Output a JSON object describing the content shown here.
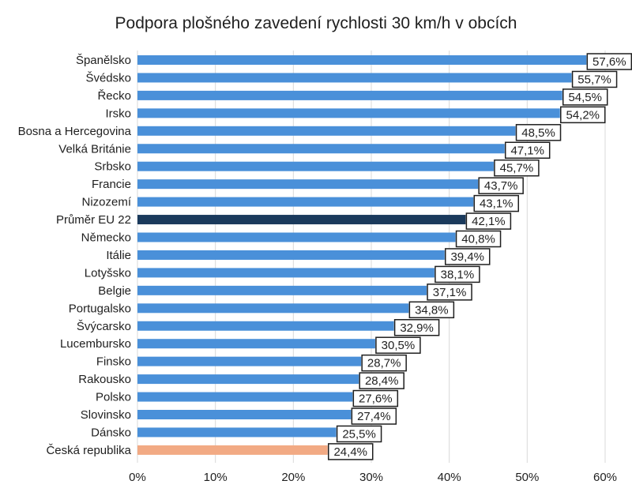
{
  "chart_data": {
    "type": "bar",
    "orientation": "horizontal",
    "title": "Podpora plošného zavedení rychlosti 30 km/h v obcích",
    "xlabel": "",
    "ylabel": "",
    "xlim": [
      0,
      60
    ],
    "x_ticks": [
      "0%",
      "10%",
      "20%",
      "30%",
      "40%",
      "50%",
      "60%"
    ],
    "grid": true,
    "legend": "none",
    "categories": [
      "Španělsko",
      "Švédsko",
      "Řecko",
      "Irsko",
      "Bosna a Hercegovina",
      "Velká Británie",
      "Srbsko",
      "Francie",
      "Nizozemí",
      "Průměr EU 22",
      "Německo",
      "Itálie",
      "Lotyšsko",
      "Belgie",
      "Portugalsko",
      "Švýcarsko",
      "Lucembursko",
      "Finsko",
      "Rakousko",
      "Polsko",
      "Slovinsko",
      "Dánsko",
      "Česká republika"
    ],
    "values": [
      57.6,
      55.7,
      54.5,
      54.2,
      48.5,
      47.1,
      45.7,
      43.7,
      43.1,
      42.1,
      40.8,
      39.4,
      38.1,
      37.1,
      34.8,
      32.9,
      30.5,
      28.7,
      28.4,
      27.6,
      27.4,
      25.5,
      24.4
    ],
    "data_labels": [
      "57,6%",
      "55,7%",
      "54,5%",
      "54,2%",
      "48,5%",
      "47,1%",
      "45,7%",
      "43,7%",
      "43,1%",
      "42,1%",
      "40,8%",
      "39,4%",
      "38,1%",
      "37,1%",
      "34,8%",
      "32,9%",
      "30,5%",
      "28,7%",
      "28,4%",
      "27,6%",
      "27,4%",
      "25,5%",
      "24,4%"
    ],
    "colors": {
      "default": "#4a90d9",
      "Průměr EU 22": "#1b3a5c",
      "Česká republika": "#f2aa84"
    }
  }
}
